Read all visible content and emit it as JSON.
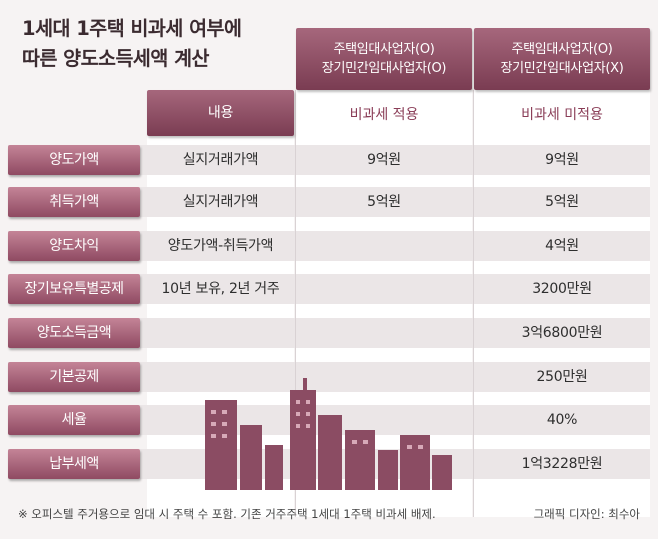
{
  "title": {
    "line1": "1세대 1주택 비과세 여부에",
    "line2": "따른 양도소득세액 계산"
  },
  "headers": {
    "content": "내용",
    "case1": {
      "line1": "주택임대사업자(O)",
      "line2": "장기민간임대사업자(O)",
      "status": "비과세 적용"
    },
    "case2": {
      "line1": "주택임대사업자(O)",
      "line2": "장기민간임대사업자(X)",
      "status": "비과세 미적용"
    }
  },
  "rows": [
    {
      "label": "양도가액",
      "content": "실지거래가액",
      "case1": "9억원",
      "case2": "9억원"
    },
    {
      "label": "취득가액",
      "content": "실지거래가액",
      "case1": "5억원",
      "case2": "5억원"
    },
    {
      "label": "양도차익",
      "content": "양도가액-취득가액",
      "case1": "",
      "case2": "4억원"
    },
    {
      "label": "장기보유특별공제",
      "content": "10년 보유, 2년 거주",
      "case1": "",
      "case2": "3200만원"
    },
    {
      "label": "양도소득금액",
      "content": "",
      "case1": "",
      "case2": "3억6800만원"
    },
    {
      "label": "기본공제",
      "content": "",
      "case1": "",
      "case2": "250만원"
    },
    {
      "label": "세율",
      "content": "",
      "case1": "",
      "case2": "40%"
    },
    {
      "label": "납부세액",
      "content": "",
      "case1": "",
      "case2": "1억3228만원"
    }
  ],
  "footer": {
    "note": "※ 오피스텔 주거용으로 임대 시 주택 수 포함. 기존 거주주택 1세대 1주택 비과세 배제.",
    "credit": "그래픽 디자인: 최수아"
  },
  "colors": {
    "accent": "#8f4a62",
    "header": "#7a3c52",
    "band": "#ebe6e7"
  },
  "illustration": "city-skyline-buildings"
}
